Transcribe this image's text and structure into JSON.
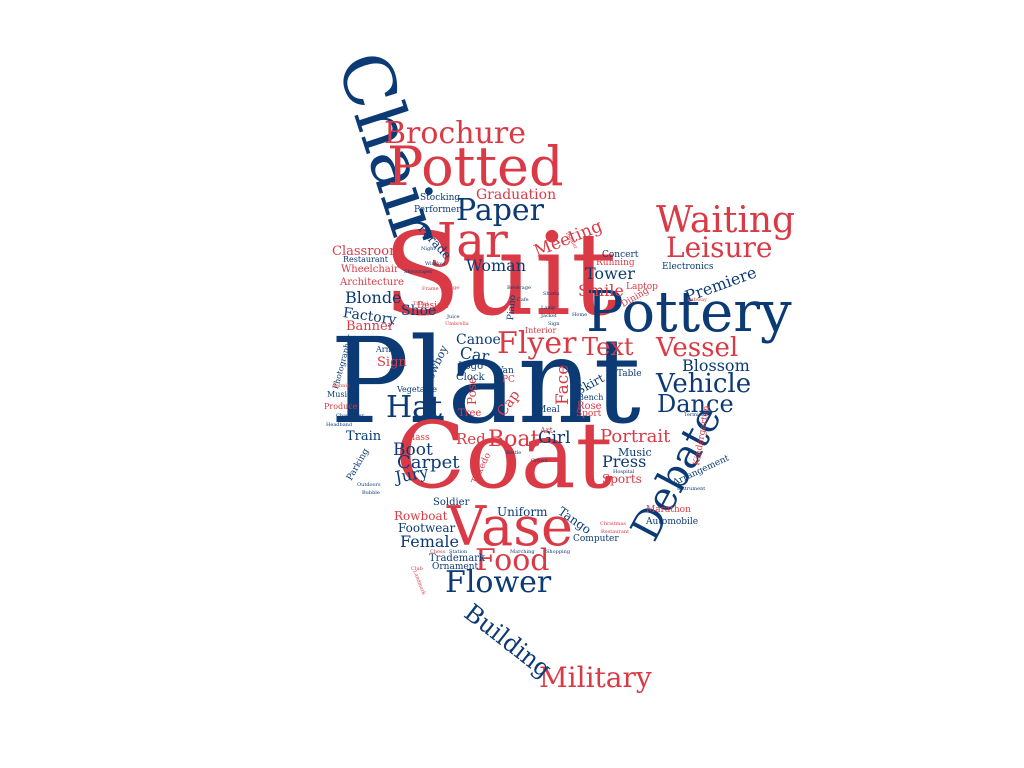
{
  "colors": {
    "navy": "#0b3a75",
    "red": "#d93a45",
    "background": "#ffffff"
  },
  "words": [
    {
      "text": "Plant",
      "color": "navy",
      "orientation": "horizontal"
    },
    {
      "text": "Suit",
      "color": "red",
      "orientation": "horizontal"
    },
    {
      "text": "Coat",
      "color": "red",
      "orientation": "horizontal"
    },
    {
      "text": "Chair",
      "color": "navy",
      "orientation": "vertical"
    },
    {
      "text": "Pottery",
      "color": "navy",
      "orientation": "horizontal"
    },
    {
      "text": "Potted",
      "color": "red",
      "orientation": "horizontal"
    },
    {
      "text": "Vase",
      "color": "red",
      "orientation": "horizontal"
    },
    {
      "text": "Jar",
      "color": "red",
      "orientation": "horizontal"
    },
    {
      "text": "Debate",
      "color": "navy",
      "orientation": "diagonal"
    },
    {
      "text": "Waiting",
      "color": "red",
      "orientation": "horizontal"
    },
    {
      "text": "Brochure",
      "color": "red",
      "orientation": "horizontal"
    },
    {
      "text": "Flower",
      "color": "navy",
      "orientation": "horizontal"
    },
    {
      "text": "Military",
      "color": "red",
      "orientation": "horizontal"
    },
    {
      "text": "Leisure",
      "color": "red",
      "orientation": "horizontal"
    },
    {
      "text": "Paper",
      "color": "navy",
      "orientation": "horizontal"
    },
    {
      "text": "Food",
      "color": "red",
      "orientation": "horizontal"
    },
    {
      "text": "Flyer",
      "color": "red",
      "orientation": "horizontal"
    },
    {
      "text": "Hat",
      "color": "navy",
      "orientation": "horizontal"
    },
    {
      "text": "Vessel",
      "color": "red",
      "orientation": "horizontal"
    },
    {
      "text": "Vehicle",
      "color": "navy",
      "orientation": "horizontal"
    },
    {
      "text": "Dance",
      "color": "navy",
      "orientation": "horizontal"
    },
    {
      "text": "Text",
      "color": "red",
      "orientation": "horizontal"
    },
    {
      "text": "Building",
      "color": "navy",
      "orientation": "diagonal"
    },
    {
      "text": "Boat",
      "color": "red",
      "orientation": "horizontal"
    },
    {
      "text": "Portrait",
      "color": "red",
      "orientation": "horizontal"
    },
    {
      "text": "Blossom",
      "color": "navy",
      "orientation": "horizontal"
    },
    {
      "text": "Premiere",
      "color": "navy",
      "orientation": "diagonal"
    },
    {
      "text": "Carpet",
      "color": "navy",
      "orientation": "horizontal"
    },
    {
      "text": "Meeting",
      "color": "red",
      "orientation": "diagonal"
    },
    {
      "text": "Woman",
      "color": "navy",
      "orientation": "horizontal"
    },
    {
      "text": "Blonde",
      "color": "navy",
      "orientation": "horizontal"
    },
    {
      "text": "Tower",
      "color": "navy",
      "orientation": "horizontal"
    },
    {
      "text": "Smile",
      "color": "red",
      "orientation": "horizontal"
    },
    {
      "text": "Press",
      "color": "navy",
      "orientation": "horizontal"
    },
    {
      "text": "Girl",
      "color": "navy",
      "orientation": "horizontal"
    },
    {
      "text": "Boot",
      "color": "navy",
      "orientation": "horizontal"
    },
    {
      "text": "Jury",
      "color": "navy",
      "orientation": "horizontal"
    },
    {
      "text": "Female",
      "color": "navy",
      "orientation": "horizontal"
    },
    {
      "text": "Red",
      "color": "red",
      "orientation": "horizontal"
    },
    {
      "text": "Car",
      "color": "navy",
      "orientation": "horizontal"
    },
    {
      "text": "Canoe",
      "color": "navy",
      "orientation": "horizontal"
    },
    {
      "text": "Shoe",
      "color": "navy",
      "orientation": "horizontal"
    },
    {
      "text": "Factory",
      "color": "navy",
      "orientation": "horizontal"
    },
    {
      "text": "Banner",
      "color": "red",
      "orientation": "horizontal"
    },
    {
      "text": "Sign",
      "color": "red",
      "orientation": "horizontal"
    },
    {
      "text": "Train",
      "color": "navy",
      "orientation": "horizontal"
    },
    {
      "text": "Face",
      "color": "red",
      "orientation": "vertical"
    },
    {
      "text": "Graduation",
      "color": "red",
      "orientation": "horizontal"
    },
    {
      "text": "Classroom",
      "color": "red",
      "orientation": "horizontal"
    },
    {
      "text": "Wheelchair",
      "color": "red",
      "orientation": "horizontal"
    },
    {
      "text": "Architecture",
      "color": "red",
      "orientation": "horizontal"
    },
    {
      "text": "Restaurant",
      "color": "navy",
      "orientation": "horizontal"
    },
    {
      "text": "Stocking",
      "color": "navy",
      "orientation": "horizontal"
    },
    {
      "text": "Performer",
      "color": "navy",
      "orientation": "horizontal"
    },
    {
      "text": "Parade",
      "color": "navy",
      "orientation": "diagonal"
    },
    {
      "text": "Concert",
      "color": "navy",
      "orientation": "horizontal"
    },
    {
      "text": "Running",
      "color": "red",
      "orientation": "horizontal"
    },
    {
      "text": "Electronics",
      "color": "navy",
      "orientation": "horizontal"
    },
    {
      "text": "Laptop",
      "color": "red",
      "orientation": "horizontal"
    },
    {
      "text": "Dining",
      "color": "red",
      "orientation": "diagonal"
    },
    {
      "text": "Design",
      "color": "red",
      "orientation": "horizontal"
    },
    {
      "text": "Uniform",
      "color": "navy",
      "orientation": "horizontal"
    },
    {
      "text": "Tango",
      "color": "navy",
      "orientation": "diagonal"
    },
    {
      "text": "Rowboat",
      "color": "red",
      "orientation": "horizontal"
    },
    {
      "text": "Footwear",
      "color": "navy",
      "orientation": "horizontal"
    },
    {
      "text": "Trademark",
      "color": "navy",
      "orientation": "horizontal"
    },
    {
      "text": "Ornament",
      "color": "navy",
      "orientation": "horizontal"
    },
    {
      "text": "Soldier",
      "color": "navy",
      "orientation": "horizontal"
    },
    {
      "text": "Arrangement",
      "color": "navy",
      "orientation": "diagonal"
    },
    {
      "text": "Marathon",
      "color": "red",
      "orientation": "horizontal"
    },
    {
      "text": "Automobile",
      "color": "navy",
      "orientation": "horizontal"
    },
    {
      "text": "Computer",
      "color": "navy",
      "orientation": "horizontal"
    },
    {
      "text": "Music",
      "color": "navy",
      "orientation": "horizontal"
    },
    {
      "text": "Sports",
      "color": "red",
      "orientation": "horizontal"
    },
    {
      "text": "Kindergarten",
      "color": "red",
      "orientation": "vertical"
    },
    {
      "text": "Table",
      "color": "navy",
      "orientation": "horizontal"
    },
    {
      "text": "Skirt",
      "color": "navy",
      "orientation": "diagonal"
    },
    {
      "text": "Rose",
      "color": "red",
      "orientation": "horizontal"
    },
    {
      "text": "Sport",
      "color": "red",
      "orientation": "horizontal"
    },
    {
      "text": "Bench",
      "color": "navy",
      "orientation": "horizontal"
    },
    {
      "text": "Meal",
      "color": "navy",
      "orientation": "horizontal"
    },
    {
      "text": "Art",
      "color": "red",
      "orientation": "horizontal"
    },
    {
      "text": "Glass",
      "color": "red",
      "orientation": "horizontal"
    },
    {
      "text": "Cap",
      "color": "red",
      "orientation": "diagonal"
    },
    {
      "text": "Pose",
      "color": "red",
      "orientation": "vertical"
    },
    {
      "text": "Logo",
      "color": "navy",
      "orientation": "horizontal"
    },
    {
      "text": "Clock",
      "color": "navy",
      "orientation": "horizontal"
    },
    {
      "text": "Tree",
      "color": "red",
      "orientation": "horizontal"
    },
    {
      "text": "Van",
      "color": "navy",
      "orientation": "horizontal"
    },
    {
      "text": "PC",
      "color": "red",
      "orientation": "horizontal"
    },
    {
      "text": "Cowboy",
      "color": "navy",
      "orientation": "diagonal"
    },
    {
      "text": "Vegetable",
      "color": "navy",
      "orientation": "horizontal"
    },
    {
      "text": "Army",
      "color": "navy",
      "orientation": "horizontal"
    },
    {
      "text": "Photographer",
      "color": "navy",
      "orientation": "vertical"
    },
    {
      "text": "Musical",
      "color": "navy",
      "orientation": "horizontal"
    },
    {
      "text": "Produce",
      "color": "red",
      "orientation": "horizontal"
    },
    {
      "text": "Parking",
      "color": "navy",
      "orientation": "diagonal"
    },
    {
      "text": "Interior",
      "color": "red",
      "orientation": "horizontal"
    },
    {
      "text": "Tuxedo",
      "color": "red",
      "orientation": "vertical"
    },
    {
      "text": "Piano",
      "color": "navy",
      "orientation": "vertical"
    },
    {
      "text": "Umbrella",
      "color": "red",
      "orientation": "horizontal"
    },
    {
      "text": "Juice",
      "color": "navy",
      "orientation": "horizontal"
    },
    {
      "text": "Cafe",
      "color": "navy",
      "orientation": "horizontal"
    },
    {
      "text": "Lamp",
      "color": "navy",
      "orientation": "horizontal"
    },
    {
      "text": "Jacket",
      "color": "navy",
      "orientation": "horizontal"
    },
    {
      "text": "Shopping",
      "color": "navy",
      "orientation": "horizontal"
    },
    {
      "text": "Marching",
      "color": "navy",
      "orientation": "horizontal"
    },
    {
      "text": "Station",
      "color": "navy",
      "orientation": "horizontal"
    },
    {
      "text": "Chess",
      "color": "red",
      "orientation": "horizontal"
    },
    {
      "text": "Landmark",
      "color": "red",
      "orientation": "diagonal"
    },
    {
      "text": "Club",
      "color": "red",
      "orientation": "horizontal"
    },
    {
      "text": "Headband",
      "color": "navy",
      "orientation": "horizontal"
    },
    {
      "text": "Chandelier",
      "color": "navy",
      "orientation": "horizontal"
    },
    {
      "text": "Tennis",
      "color": "red",
      "orientation": "horizontal"
    },
    {
      "text": "Outdoors",
      "color": "navy",
      "orientation": "horizontal"
    },
    {
      "text": "Bubble",
      "color": "navy",
      "orientation": "horizontal"
    },
    {
      "text": "Christmas",
      "color": "red",
      "orientation": "horizontal"
    },
    {
      "text": "Restaurant",
      "color": "red",
      "orientation": "horizontal"
    },
    {
      "text": "Subway",
      "color": "red",
      "orientation": "horizontal"
    },
    {
      "text": "Terminal",
      "color": "navy",
      "orientation": "horizontal"
    },
    {
      "text": "Instrument",
      "color": "navy",
      "orientation": "horizontal"
    },
    {
      "text": "Hospital",
      "color": "navy",
      "orientation": "horizontal"
    },
    {
      "text": "Bottle",
      "color": "navy",
      "orientation": "horizontal"
    },
    {
      "text": "Crown",
      "color": "navy",
      "orientation": "horizontal"
    },
    {
      "text": "Toddler",
      "color": "red",
      "orientation": "vertical"
    },
    {
      "text": "Skyscraper",
      "color": "navy",
      "orientation": "horizontal"
    },
    {
      "text": "Window",
      "color": "navy",
      "orientation": "horizontal"
    },
    {
      "text": "Night",
      "color": "navy",
      "orientation": "horizontal"
    },
    {
      "text": "Collage",
      "color": "red",
      "orientation": "horizontal"
    },
    {
      "text": "Frame",
      "color": "red",
      "orientation": "horizontal"
    },
    {
      "text": "Tribal",
      "color": "red",
      "orientation": "horizontal"
    },
    {
      "text": "Water",
      "color": "red",
      "orientation": "horizontal"
    },
    {
      "text": "Beverage",
      "color": "navy",
      "orientation": "horizontal"
    },
    {
      "text": "Shorts",
      "color": "navy",
      "orientation": "horizontal"
    },
    {
      "text": "Sign",
      "color": "navy",
      "orientation": "horizontal"
    },
    {
      "text": "Home",
      "color": "navy",
      "orientation": "horizontal"
    }
  ]
}
